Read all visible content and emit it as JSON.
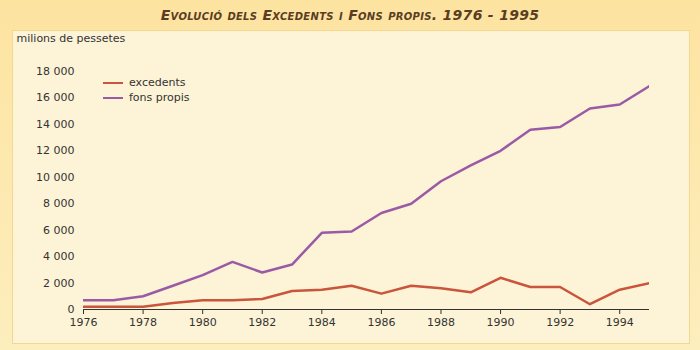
{
  "chart_data": {
    "type": "line",
    "title": "Evolució dels Excedents i Fons propis. 1976 - 1995",
    "y_label": "milions de pessetes",
    "x": [
      1976,
      1977,
      1978,
      1979,
      1980,
      1981,
      1982,
      1983,
      1984,
      1985,
      1986,
      1987,
      1988,
      1989,
      1990,
      1991,
      1992,
      1993,
      1994,
      1995
    ],
    "series": [
      {
        "name": "excedents",
        "color": "#c9553c",
        "values": [
          200,
          200,
          200,
          500,
          700,
          700,
          800,
          1400,
          1500,
          1800,
          1200,
          1800,
          1600,
          1300,
          2400,
          1700,
          1700,
          400,
          1500,
          2000
        ]
      },
      {
        "name": "fons propis",
        "color": "#9a5aa6",
        "values": [
          700,
          700,
          1000,
          1800,
          2600,
          3600,
          2800,
          3400,
          5800,
          5900,
          7300,
          8000,
          9700,
          10900,
          12000,
          13600,
          13800,
          15200,
          15500,
          16900
        ]
      }
    ],
    "xlim": [
      1976,
      1995
    ],
    "xticks": [
      1976,
      1978,
      1980,
      1982,
      1984,
      1986,
      1988,
      1990,
      1992,
      1994
    ],
    "ylim": [
      0,
      18000
    ],
    "yticks": [
      0,
      {
        "value": 2000,
        "label": "2 000"
      },
      {
        "value": 4000,
        "label": "4 000"
      },
      {
        "value": 6000,
        "label": "6 000"
      },
      {
        "value": 8000,
        "label": "8 000"
      },
      {
        "value": 10000,
        "label": "10 000"
      },
      {
        "value": 12000,
        "label": "12 000"
      },
      {
        "value": 14000,
        "label": "14 000"
      },
      {
        "value": 16000,
        "label": "16 000"
      },
      {
        "value": 18000,
        "label": "18 000"
      }
    ],
    "legend": "top-left",
    "grid": false
  }
}
